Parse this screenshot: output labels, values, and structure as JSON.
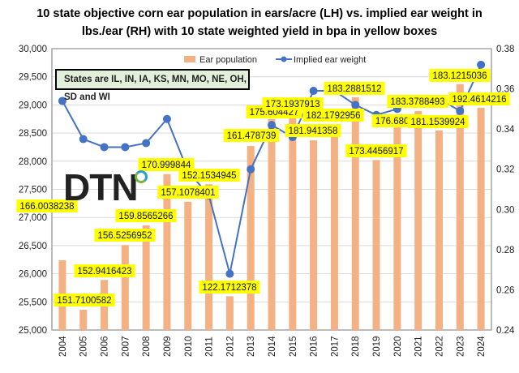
{
  "chart_data": {
    "type": "bar+line",
    "title": [
      "10 state objective corn ear population in ears/acre (LH) vs. implied ear weight in",
      "lbs./ear  (RH) with 10 state weighted yield in bpa in yellow boxes"
    ],
    "annotation": "States are IL, IN, IA, KS, MN, MO, NE, OH, SD and WI",
    "logo_text": "DTN",
    "categories": [
      "2004",
      "2005",
      "2006",
      "2007",
      "2008",
      "2009",
      "2010",
      "2011",
      "2012",
      "2013",
      "2014",
      "2015",
      "2016",
      "2017",
      "2018",
      "2019",
      "2020",
      "2021",
      "2022",
      "2023",
      "2024"
    ],
    "series": [
      {
        "name": "Ear population",
        "type": "bar",
        "axis": "left",
        "color": "#f4b183",
        "values": [
          26240,
          25360,
          25890,
          26510,
          26860,
          27770,
          27280,
          27590,
          25600,
          28270,
          28750,
          28790,
          28370,
          28440,
          29135,
          28020,
          28600,
          28890,
          28545,
          29370,
          28950
        ]
      },
      {
        "name": "Implied ear weight",
        "type": "line",
        "axis": "right",
        "color": "#4472c4",
        "values": [
          0.354,
          0.335,
          0.331,
          0.331,
          0.333,
          0.345,
          0.319,
          0.307,
          0.268,
          0.32,
          0.342,
          0.336,
          0.359,
          0.359,
          0.352,
          0.347,
          0.35,
          0.355,
          0.355,
          0.349,
          0.372
        ]
      }
    ],
    "yield_labels": [
      "166.0038238",
      "151.7100582",
      "152.9416423",
      "156.5256952",
      "159.8565266",
      "170.999844",
      "157.1078401",
      "152.1534945",
      "122.1712378",
      "161.478739",
      "175.604427",
      "173.1937913",
      "181.941358",
      "182.1792956",
      "183.2881512",
      "173.4456917",
      "176.68038",
      "183.3788493",
      "181.1539924",
      "183.1215036",
      "192.4614216"
    ],
    "yield_label_color": "#ffff00",
    "left_axis": {
      "ylim": [
        25000,
        30000
      ],
      "ticks": [
        "25,000",
        "25,500",
        "26,000",
        "26,500",
        "27,000",
        "27,500",
        "28,000",
        "28,500",
        "29,000",
        "29,500",
        "30,000"
      ]
    },
    "right_axis": {
      "ylim": [
        0.24,
        0.38
      ],
      "ticks": [
        "0.24",
        "0.26",
        "0.28",
        "0.30",
        "0.32",
        "0.34",
        "0.36",
        "0.38"
      ]
    },
    "grid": true,
    "legend": "top"
  }
}
